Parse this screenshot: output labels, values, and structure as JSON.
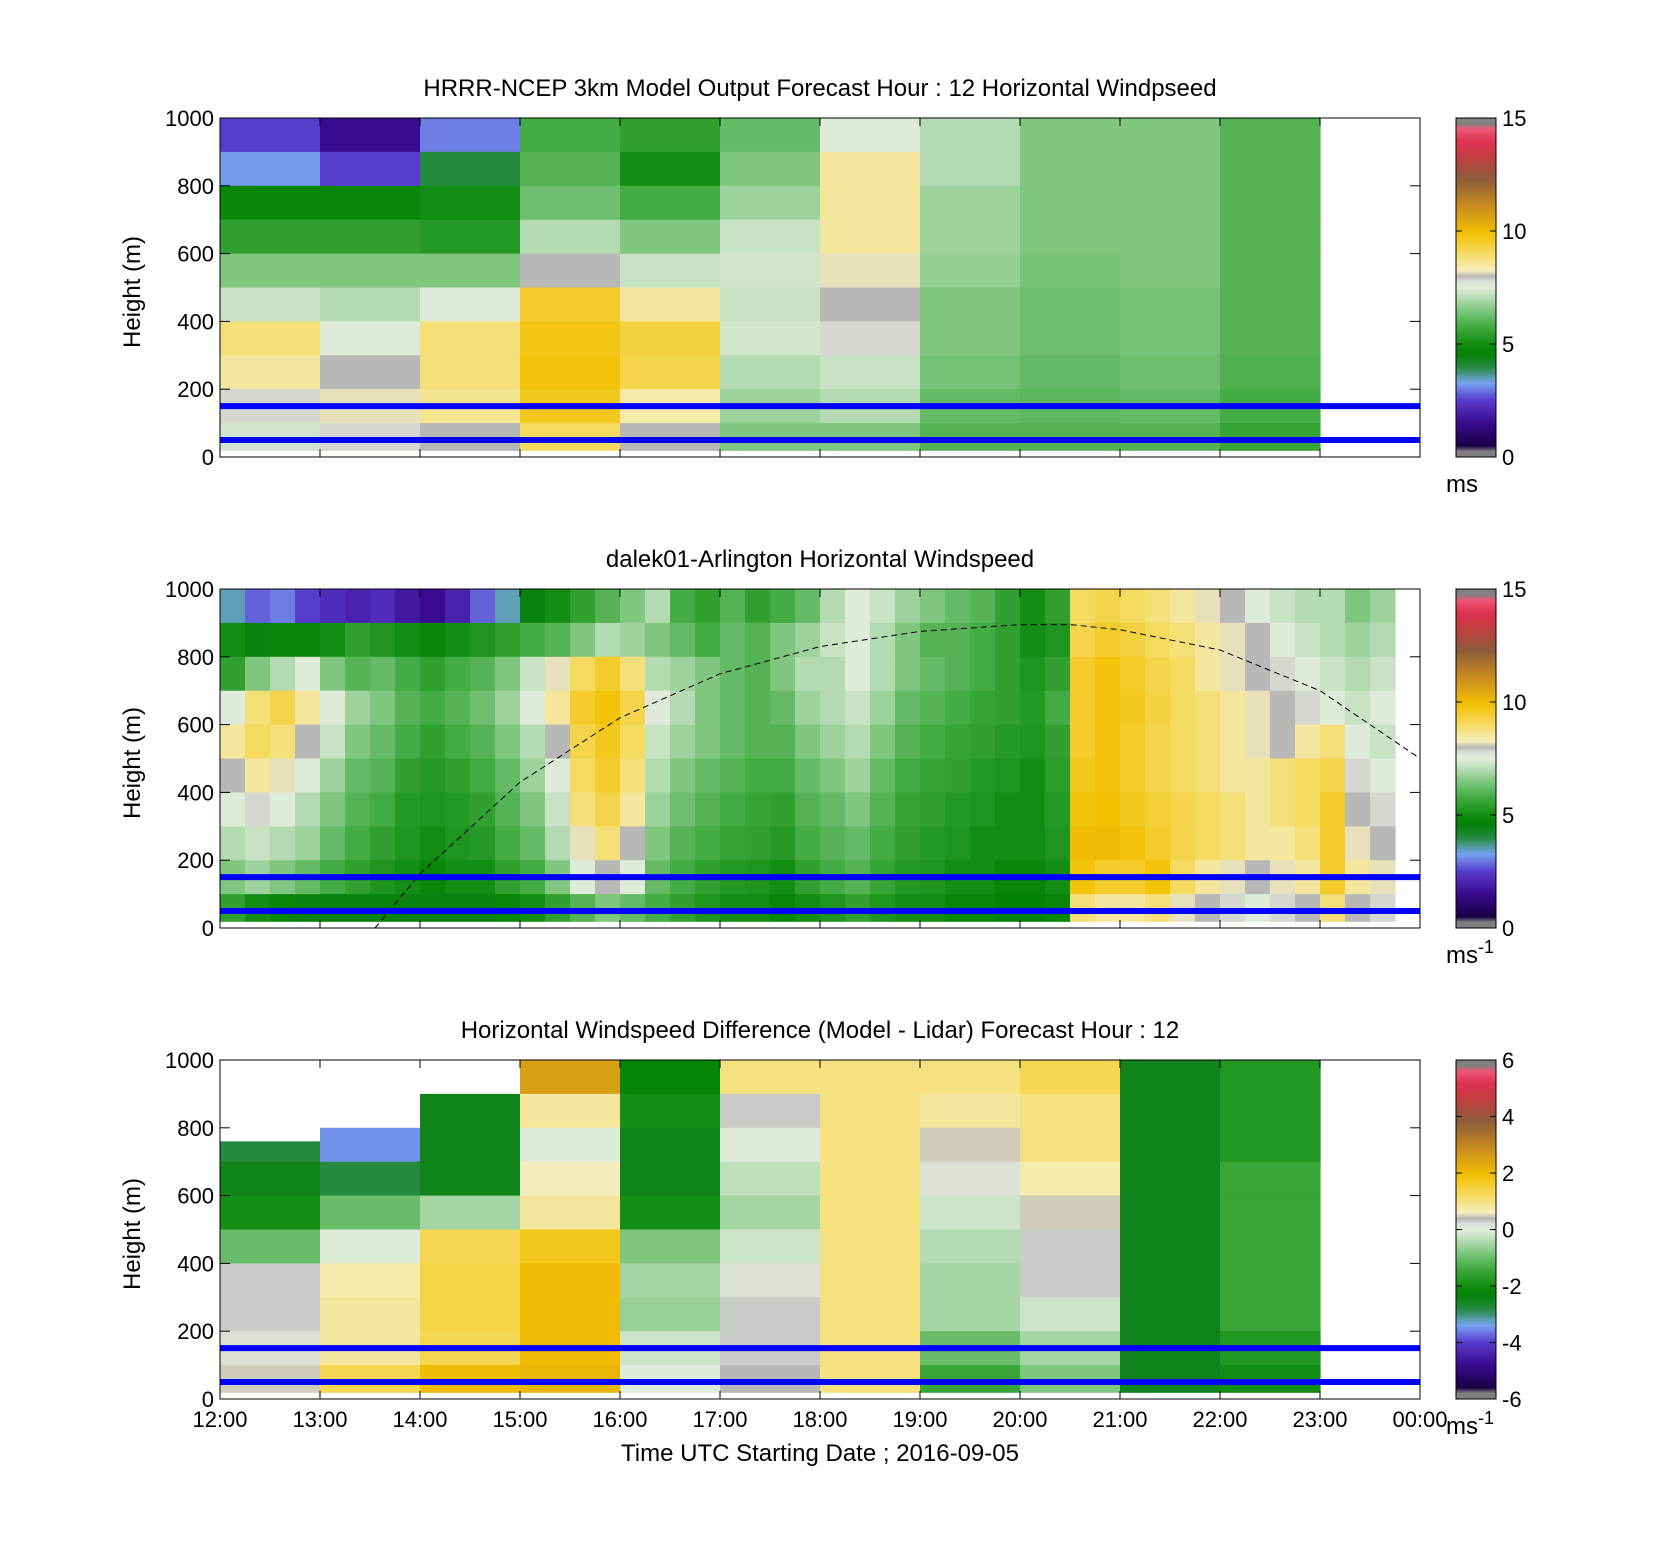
{
  "figure": {
    "xaxis": {
      "label": "Time UTC  Starting Date ; 2016-09-05",
      "ticks": [
        "12:00",
        "13:00",
        "14:00",
        "15:00",
        "16:00",
        "17:00",
        "18:00",
        "19:00",
        "20:00",
        "21:00",
        "22:00",
        "23:00",
        "00:00"
      ]
    },
    "reference_lines_m": [
      150,
      50
    ],
    "reference_line_color": "#0000ff"
  },
  "chart_data": [
    {
      "type": "heatmap",
      "title": "HRRR-NCEP 3km Model Output   Forecast Hour : 12 Horizontal Windpseed",
      "ylabel": "Height (m)",
      "ylim": [
        0,
        1000
      ],
      "yticks": [
        "0",
        "200",
        "400",
        "600",
        "800",
        "1000"
      ],
      "colorbar": {
        "ticks": [
          "0",
          "5",
          "10",
          "15"
        ],
        "range": [
          0,
          15
        ],
        "unit": "ms",
        "unit_sup": ""
      },
      "x_hours": [
        12,
        13,
        14,
        15,
        16,
        17,
        18,
        19,
        20,
        21,
        22
      ],
      "y_bins_m": [
        950,
        850,
        750,
        650,
        550,
        450,
        350,
        250,
        150,
        50
      ],
      "values": [
        [
          2.5,
          1.5,
          3.0,
          5.8,
          5.5,
          6.2,
          7.5,
          7.0,
          6.5,
          6.5,
          6.0
        ],
        [
          3.2,
          2.5,
          4.0,
          6.0,
          5.0,
          6.5,
          8.5,
          7.0,
          6.5,
          6.5,
          6.0
        ],
        [
          4.8,
          4.8,
          5.0,
          6.3,
          5.8,
          6.8,
          8.5,
          6.8,
          6.5,
          6.5,
          6.0
        ],
        [
          5.5,
          5.5,
          5.3,
          7.0,
          6.5,
          7.2,
          8.5,
          6.8,
          6.5,
          6.5,
          6.0
        ],
        [
          6.5,
          6.5,
          6.5,
          8.0,
          7.2,
          7.3,
          8.2,
          6.7,
          6.4,
          6.5,
          6.0
        ],
        [
          7.2,
          7.0,
          7.5,
          9.5,
          8.5,
          7.2,
          8.0,
          6.5,
          6.3,
          6.4,
          6.0
        ],
        [
          8.8,
          7.5,
          8.8,
          9.7,
          9.3,
          7.3,
          7.8,
          6.5,
          6.3,
          6.4,
          6.0
        ],
        [
          8.5,
          8.0,
          8.8,
          9.8,
          9.2,
          7.0,
          7.2,
          6.4,
          6.2,
          6.3,
          5.9
        ],
        [
          7.8,
          8.2,
          8.6,
          9.6,
          8.4,
          6.8,
          7.0,
          6.2,
          6.1,
          6.2,
          5.8
        ],
        [
          7.3,
          7.8,
          8.0,
          9.0,
          8.0,
          6.5,
          6.5,
          6.0,
          6.0,
          6.0,
          5.6
        ]
      ]
    },
    {
      "type": "heatmap",
      "title": "dalek01-Arlington  Horizontal Windspeed",
      "ylabel": "Height (m)",
      "ylim": [
        0,
        1000
      ],
      "yticks": [
        "0",
        "200",
        "400",
        "600",
        "800",
        "1000"
      ],
      "colorbar": {
        "ticks": [
          "0",
          "5",
          "10",
          "15"
        ],
        "range": [
          0,
          15
        ],
        "unit": "ms",
        "unit_sup": "-1"
      },
      "x_hours": [
        12.0,
        12.25,
        12.5,
        12.75,
        13.0,
        13.25,
        13.5,
        13.75,
        14.0,
        14.25,
        14.5,
        14.75,
        15.0,
        15.25,
        15.5,
        15.75,
        16.0,
        16.25,
        16.5,
        16.75,
        17.0,
        17.25,
        17.5,
        17.75,
        18.0,
        18.25,
        18.5,
        18.75,
        19.0,
        19.25,
        19.5,
        19.75,
        20.0,
        20.25,
        20.5,
        20.75,
        21.0,
        21.25,
        21.5,
        21.75,
        22.0,
        22.25,
        22.5,
        22.75,
        23.0,
        23.25,
        23.5
      ],
      "y_bins_m": [
        950,
        850,
        750,
        650,
        550,
        450,
        350,
        250,
        150,
        50
      ],
      "values": [
        [
          3.5,
          2.8,
          3.0,
          2.5,
          2.2,
          2.0,
          2.2,
          1.8,
          1.5,
          2.0,
          2.8,
          3.5,
          4.5,
          5.0,
          5.5,
          6.0,
          6.5,
          7.0,
          5.8,
          5.5,
          6.0,
          5.5,
          5.8,
          6.2,
          7.0,
          7.5,
          7.2,
          6.8,
          6.5,
          6.2,
          6.0,
          5.5,
          5.0,
          5.5,
          9.0,
          9.2,
          9.0,
          8.8,
          8.5,
          8.2,
          8.0,
          7.5,
          7.2,
          7.0,
          7.0,
          6.5,
          6.8
        ],
        [
          5.0,
          4.5,
          4.8,
          4.8,
          5.0,
          5.5,
          5.2,
          5.0,
          4.8,
          5.0,
          5.2,
          5.5,
          5.8,
          6.0,
          6.5,
          7.0,
          6.8,
          6.5,
          6.2,
          5.8,
          6.2,
          6.0,
          6.5,
          6.8,
          7.2,
          7.5,
          7.0,
          6.5,
          6.0,
          6.0,
          5.8,
          5.5,
          5.0,
          5.2,
          9.2,
          9.5,
          9.3,
          9.0,
          8.8,
          8.5,
          8.2,
          8.0,
          7.5,
          7.2,
          7.0,
          6.8,
          7.0
        ],
        [
          5.5,
          6.5,
          7.0,
          7.5,
          6.5,
          6.0,
          6.2,
          5.8,
          5.5,
          5.8,
          6.0,
          6.5,
          7.2,
          8.2,
          9.0,
          9.5,
          8.8,
          7.0,
          6.8,
          6.5,
          6.2,
          6.0,
          6.5,
          7.0,
          7.0,
          7.5,
          7.0,
          6.5,
          6.2,
          6.0,
          5.8,
          5.5,
          5.2,
          5.5,
          9.5,
          9.8,
          9.5,
          9.2,
          9.0,
          8.5,
          8.2,
          8.0,
          7.8,
          7.5,
          7.2,
          7.0,
          7.2
        ],
        [
          7.5,
          8.8,
          9.2,
          8.5,
          7.5,
          6.8,
          6.5,
          6.0,
          5.8,
          6.0,
          6.3,
          6.8,
          7.5,
          8.5,
          9.5,
          9.8,
          9.2,
          7.5,
          7.0,
          6.5,
          6.2,
          6.0,
          6.2,
          6.8,
          7.0,
          7.2,
          6.8,
          6.2,
          6.0,
          5.8,
          5.6,
          5.5,
          5.3,
          5.8,
          9.5,
          9.8,
          9.6,
          9.3,
          9.0,
          8.8,
          8.5,
          8.2,
          8.0,
          7.8,
          7.5,
          7.2,
          7.5
        ],
        [
          8.5,
          9.0,
          8.8,
          8.0,
          7.2,
          6.5,
          6.2,
          5.8,
          5.5,
          5.8,
          6.0,
          6.5,
          7.0,
          8.0,
          9.2,
          9.6,
          9.0,
          7.2,
          6.8,
          6.5,
          6.2,
          6.0,
          6.0,
          6.5,
          6.8,
          7.0,
          6.5,
          6.0,
          5.8,
          5.6,
          5.5,
          5.3,
          5.2,
          5.5,
          9.5,
          9.8,
          9.5,
          9.2,
          9.0,
          8.8,
          8.5,
          8.2,
          8.0,
          8.5,
          8.8,
          7.5,
          7.2
        ],
        [
          8.0,
          8.5,
          8.2,
          7.5,
          6.8,
          6.2,
          6.0,
          5.5,
          5.3,
          5.5,
          5.8,
          6.2,
          6.8,
          7.5,
          9.0,
          9.5,
          8.8,
          7.0,
          6.5,
          6.2,
          6.0,
          5.8,
          5.8,
          6.2,
          6.5,
          6.8,
          6.2,
          5.8,
          5.6,
          5.5,
          5.3,
          5.2,
          5.0,
          5.4,
          9.6,
          9.8,
          9.5,
          9.2,
          9.0,
          8.8,
          8.5,
          8.5,
          8.8,
          9.0,
          9.2,
          7.8,
          7.5
        ],
        [
          7.5,
          7.8,
          7.5,
          7.0,
          6.5,
          6.0,
          5.8,
          5.3,
          5.2,
          5.3,
          5.5,
          6.0,
          6.5,
          7.2,
          8.8,
          9.2,
          8.5,
          6.8,
          6.3,
          6.0,
          5.8,
          5.6,
          5.5,
          6.0,
          6.2,
          6.5,
          6.0,
          5.6,
          5.5,
          5.3,
          5.2,
          5.0,
          5.0,
          5.3,
          9.8,
          9.9,
          9.6,
          9.4,
          9.2,
          9.0,
          8.8,
          8.5,
          8.8,
          9.0,
          9.5,
          8.0,
          7.8
        ],
        [
          7.0,
          7.2,
          7.0,
          6.8,
          6.2,
          5.8,
          5.5,
          5.2,
          5.0,
          5.2,
          5.3,
          5.8,
          6.2,
          7.0,
          8.2,
          8.8,
          8.0,
          6.5,
          6.0,
          5.8,
          5.6,
          5.5,
          5.3,
          5.8,
          6.0,
          6.2,
          5.8,
          5.5,
          5.3,
          5.2,
          5.0,
          5.0,
          5.0,
          5.2,
          10.0,
          10.0,
          9.8,
          9.5,
          9.2,
          9.0,
          8.8,
          8.5,
          8.5,
          8.8,
          9.5,
          8.2,
          8.0
        ],
        [
          6.5,
          6.8,
          6.5,
          6.2,
          5.8,
          5.5,
          5.2,
          5.0,
          4.8,
          5.0,
          5.0,
          5.5,
          5.8,
          6.5,
          7.5,
          8.0,
          7.5,
          6.2,
          5.8,
          5.5,
          5.3,
          5.2,
          5.0,
          5.5,
          5.8,
          6.0,
          5.6,
          5.3,
          5.2,
          5.0,
          5.0,
          4.8,
          4.8,
          5.0,
          9.8,
          9.5,
          9.5,
          9.8,
          9.0,
          8.5,
          8.2,
          8.0,
          8.2,
          8.5,
          9.5,
          8.5,
          8.2
        ],
        [
          5.5,
          5.0,
          4.8,
          4.5,
          4.5,
          4.5,
          4.5,
          4.5,
          4.5,
          4.5,
          4.5,
          4.8,
          5.0,
          5.5,
          6.0,
          6.5,
          6.2,
          5.8,
          5.5,
          5.2,
          5.0,
          5.0,
          4.8,
          5.0,
          5.2,
          5.5,
          5.2,
          5.0,
          5.0,
          4.8,
          4.8,
          4.6,
          4.6,
          4.8,
          8.8,
          8.5,
          8.5,
          8.8,
          8.2,
          8.0,
          7.8,
          7.5,
          7.8,
          8.0,
          8.8,
          8.0,
          7.8
        ]
      ],
      "overlay_curve": {
        "style": "dashed",
        "color": "#000000",
        "x_hours": [
          13.55,
          14.0,
          15.0,
          16.0,
          17.0,
          18.0,
          19.0,
          20.0,
          20.5,
          21.0,
          22.0,
          23.0,
          24.0
        ],
        "y_m": [
          0,
          160,
          430,
          620,
          750,
          830,
          875,
          895,
          895,
          880,
          820,
          700,
          500
        ]
      }
    },
    {
      "type": "heatmap",
      "title": "Horizontal Windspeed Difference (Model - Lidar) Forecast Hour : 12",
      "ylabel": "Height (m)",
      "ylim": [
        0,
        1000
      ],
      "yticks": [
        "0",
        "200",
        "400",
        "600",
        "800",
        "1000"
      ],
      "colorbar": {
        "ticks": [
          "-6",
          "-4",
          "-2",
          "0",
          "2",
          "4",
          "6"
        ],
        "range": [
          -6,
          6
        ],
        "unit": "ms",
        "unit_sup": "-1"
      },
      "x_hours": [
        12,
        13,
        14,
        15,
        16,
        17,
        18,
        19,
        20,
        21,
        22
      ],
      "column_top_m": [
        760,
        805,
        900,
        1000,
        1000,
        1000,
        1000,
        1000,
        1000,
        1000,
        1000
      ],
      "y_bins_m": [
        950,
        850,
        750,
        650,
        550,
        450,
        350,
        250,
        150,
        50
      ],
      "values": [
        [
          null,
          null,
          null,
          2.5,
          -2.2,
          1.0,
          1.0,
          1.0,
          1.3,
          -2.5,
          -1.8
        ],
        [
          null,
          null,
          -2.5,
          0.8,
          -2.0,
          0.3,
          1.0,
          0.8,
          1.0,
          -2.5,
          -1.8
        ],
        [
          -2.8,
          -3.5,
          -2.5,
          0.0,
          -2.5,
          0.0,
          1.0,
          0.5,
          1.0,
          -2.5,
          -1.8
        ],
        [
          -2.5,
          -2.8,
          -2.5,
          0.6,
          -2.5,
          -0.3,
          1.0,
          0.2,
          0.7,
          -2.5,
          -1.5
        ],
        [
          -2.0,
          -1.0,
          -0.5,
          0.8,
          -2.0,
          -0.5,
          1.0,
          -0.2,
          0.5,
          -2.5,
          -1.5
        ],
        [
          -1.0,
          0.0,
          1.3,
          1.7,
          -0.8,
          -0.2,
          1.0,
          -0.4,
          0.3,
          -2.5,
          -1.5
        ],
        [
          0.3,
          0.7,
          1.4,
          2.0,
          -0.5,
          0.2,
          1.0,
          -0.5,
          0.3,
          -2.5,
          -1.5
        ],
        [
          0.3,
          0.8,
          1.4,
          2.0,
          -0.6,
          0.3,
          1.0,
          -0.5,
          -0.2,
          -2.5,
          -1.5
        ],
        [
          0.2,
          0.8,
          1.3,
          2.0,
          -0.2,
          0.3,
          1.0,
          -1.0,
          -0.5,
          -2.5,
          -1.8
        ],
        [
          0.5,
          1.3,
          2.0,
          2.1,
          0.0,
          0.4,
          1.0,
          -1.5,
          -0.8,
          -2.5,
          -2.0
        ]
      ]
    }
  ]
}
